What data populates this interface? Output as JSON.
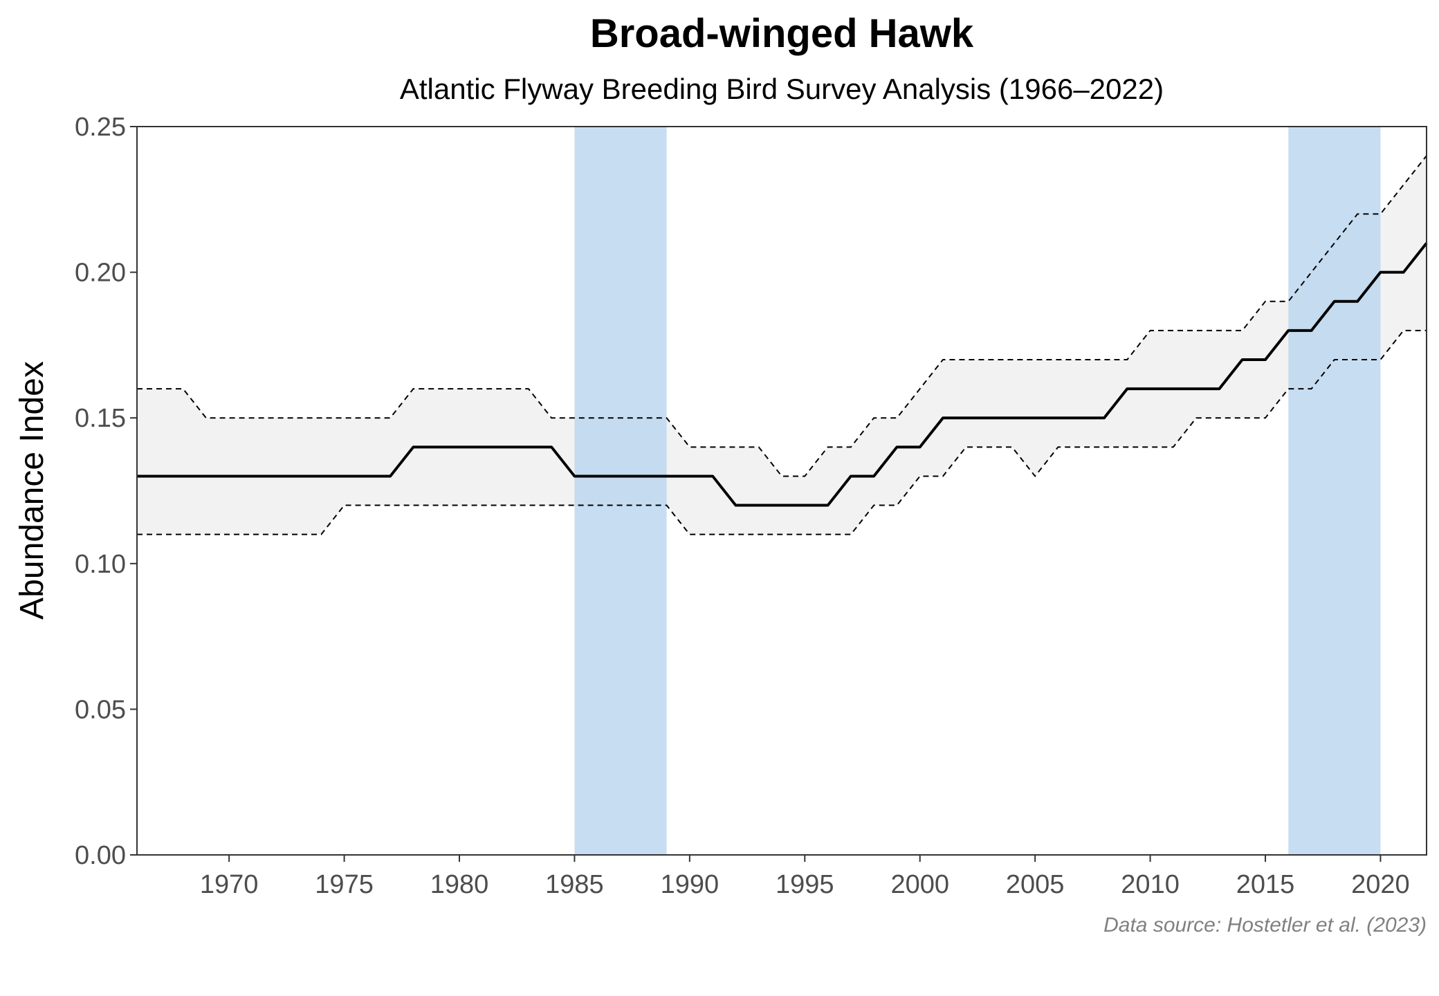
{
  "chart_data": {
    "type": "line",
    "title": "Broad-winged Hawk",
    "subtitle": "Atlantic Flyway Breeding Bird Survey Analysis (1966–2022)",
    "ylabel": "Abundance Index",
    "xlabel": "",
    "caption": "Data source: Hostetler et al. (2023)",
    "xlim": [
      1966,
      2022
    ],
    "ylim": [
      0,
      0.25
    ],
    "x_ticks": [
      1970,
      1975,
      1980,
      1985,
      1990,
      1995,
      2000,
      2005,
      2010,
      2015,
      2020
    ],
    "y_ticks": [
      0,
      0.05,
      0.1,
      0.15,
      0.2,
      0.25
    ],
    "y_tick_labels": [
      "0.00",
      "0.05",
      "0.10",
      "0.15",
      "0.20",
      "0.25"
    ],
    "grid": false,
    "highlight_periods": [
      {
        "start": 1985,
        "end": 1989,
        "color": "#bdd7ee"
      },
      {
        "start": 2016,
        "end": 2020,
        "color": "#bdd7ee"
      }
    ],
    "band_color": "#f2f2f2",
    "line_color": "#000000",
    "x": [
      1966,
      1967,
      1968,
      1969,
      1970,
      1971,
      1972,
      1973,
      1974,
      1975,
      1976,
      1977,
      1978,
      1979,
      1980,
      1981,
      1982,
      1983,
      1984,
      1985,
      1986,
      1987,
      1988,
      1989,
      1990,
      1991,
      1992,
      1993,
      1994,
      1995,
      1996,
      1997,
      1998,
      1999,
      2000,
      2001,
      2002,
      2003,
      2004,
      2005,
      2006,
      2007,
      2008,
      2009,
      2010,
      2011,
      2012,
      2013,
      2014,
      2015,
      2016,
      2017,
      2018,
      2019,
      2020,
      2021,
      2022
    ],
    "series": [
      {
        "role": "index",
        "style": "solid",
        "values": [
          0.13,
          0.13,
          0.13,
          0.13,
          0.13,
          0.13,
          0.13,
          0.13,
          0.13,
          0.13,
          0.13,
          0.13,
          0.14,
          0.14,
          0.14,
          0.14,
          0.14,
          0.14,
          0.14,
          0.13,
          0.13,
          0.13,
          0.13,
          0.13,
          0.13,
          0.13,
          0.12,
          0.12,
          0.12,
          0.12,
          0.12,
          0.13,
          0.13,
          0.14,
          0.14,
          0.15,
          0.15,
          0.15,
          0.15,
          0.15,
          0.15,
          0.15,
          0.15,
          0.16,
          0.16,
          0.16,
          0.16,
          0.16,
          0.17,
          0.17,
          0.18,
          0.18,
          0.19,
          0.19,
          0.2,
          0.2,
          0.21
        ]
      },
      {
        "role": "upper",
        "style": "dashed",
        "values": [
          0.16,
          0.16,
          0.16,
          0.15,
          0.15,
          0.15,
          0.15,
          0.15,
          0.15,
          0.15,
          0.15,
          0.15,
          0.16,
          0.16,
          0.16,
          0.16,
          0.16,
          0.16,
          0.15,
          0.15,
          0.15,
          0.15,
          0.15,
          0.15,
          0.14,
          0.14,
          0.14,
          0.14,
          0.13,
          0.13,
          0.14,
          0.14,
          0.15,
          0.15,
          0.16,
          0.17,
          0.17,
          0.17,
          0.17,
          0.17,
          0.17,
          0.17,
          0.17,
          0.17,
          0.18,
          0.18,
          0.18,
          0.18,
          0.18,
          0.19,
          0.19,
          0.2,
          0.21,
          0.22,
          0.22,
          0.23,
          0.24
        ]
      },
      {
        "role": "lower",
        "style": "dashed",
        "values": [
          0.11,
          0.11,
          0.11,
          0.11,
          0.11,
          0.11,
          0.11,
          0.11,
          0.11,
          0.12,
          0.12,
          0.12,
          0.12,
          0.12,
          0.12,
          0.12,
          0.12,
          0.12,
          0.12,
          0.12,
          0.12,
          0.12,
          0.12,
          0.12,
          0.11,
          0.11,
          0.11,
          0.11,
          0.11,
          0.11,
          0.11,
          0.11,
          0.12,
          0.12,
          0.13,
          0.13,
          0.14,
          0.14,
          0.14,
          0.13,
          0.14,
          0.14,
          0.14,
          0.14,
          0.14,
          0.14,
          0.15,
          0.15,
          0.15,
          0.15,
          0.16,
          0.16,
          0.17,
          0.17,
          0.17,
          0.18,
          0.18
        ]
      }
    ]
  }
}
